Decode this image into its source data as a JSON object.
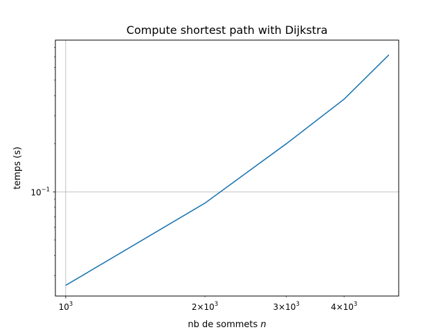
{
  "chart_data": {
    "type": "line",
    "title": "Compute shortest path with Dijkstra",
    "xlabel": "nb de sommets ",
    "xlabel_var": "n",
    "ylabel": "temps (s)",
    "xscale": "log",
    "yscale": "log",
    "xlim": [
      950,
      5250
    ],
    "ylim": [
      0.0223,
      0.89
    ],
    "grid": true,
    "x_major_ticks": [
      {
        "value": 1000,
        "base": "10",
        "exp": "3"
      }
    ],
    "x_minor_ticks": [
      {
        "value": 2000,
        "base": "2×10",
        "exp": "3"
      },
      {
        "value": 3000,
        "base": "3×10",
        "exp": "3"
      },
      {
        "value": 4000,
        "base": "4×10",
        "exp": "3"
      }
    ],
    "y_major_ticks": [
      {
        "value": 0.1,
        "base": "10",
        "exp": "−1"
      }
    ],
    "series": [
      {
        "color": "#1f77b4",
        "x": [
          1000,
          2000,
          3000,
          4000,
          5000
        ],
        "y": [
          0.026,
          0.085,
          0.2,
          0.38,
          0.72
        ]
      }
    ]
  }
}
